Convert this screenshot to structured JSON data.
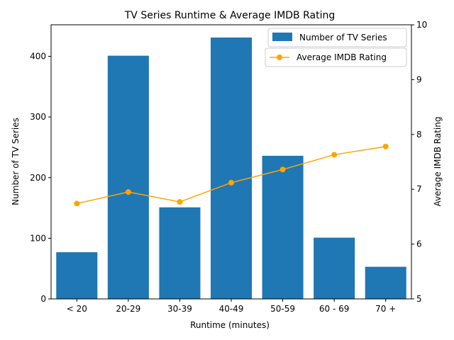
{
  "chart_data": {
    "type": "bar",
    "title": "TV Series Runtime & Average IMDB Rating",
    "xlabel": "Runtime (minutes)",
    "ylabel": "Number of TV Series",
    "y2label": "Average IMDB Rating",
    "categories": [
      "< 20",
      "20-29",
      "30-39",
      "40-49",
      "50-59",
      "60 - 69",
      "70 +"
    ],
    "ylim": [
      0,
      452
    ],
    "y2lim": [
      5,
      10
    ],
    "yticks": [
      0,
      100,
      200,
      300,
      400
    ],
    "y2ticks": [
      5,
      6,
      7,
      8,
      9,
      10
    ],
    "grid": false,
    "legend_position": "top-right",
    "series": [
      {
        "name": "Number of TV Series",
        "type": "bar",
        "axis": "left",
        "color": "#1f77b4",
        "values": [
          77,
          401,
          151,
          431,
          236,
          101,
          53
        ]
      },
      {
        "name": "Average IMDB Rating",
        "type": "line",
        "axis": "right",
        "color": "#ffa500",
        "values": [
          6.74,
          6.95,
          6.77,
          7.12,
          7.36,
          7.63,
          7.78
        ]
      }
    ]
  }
}
